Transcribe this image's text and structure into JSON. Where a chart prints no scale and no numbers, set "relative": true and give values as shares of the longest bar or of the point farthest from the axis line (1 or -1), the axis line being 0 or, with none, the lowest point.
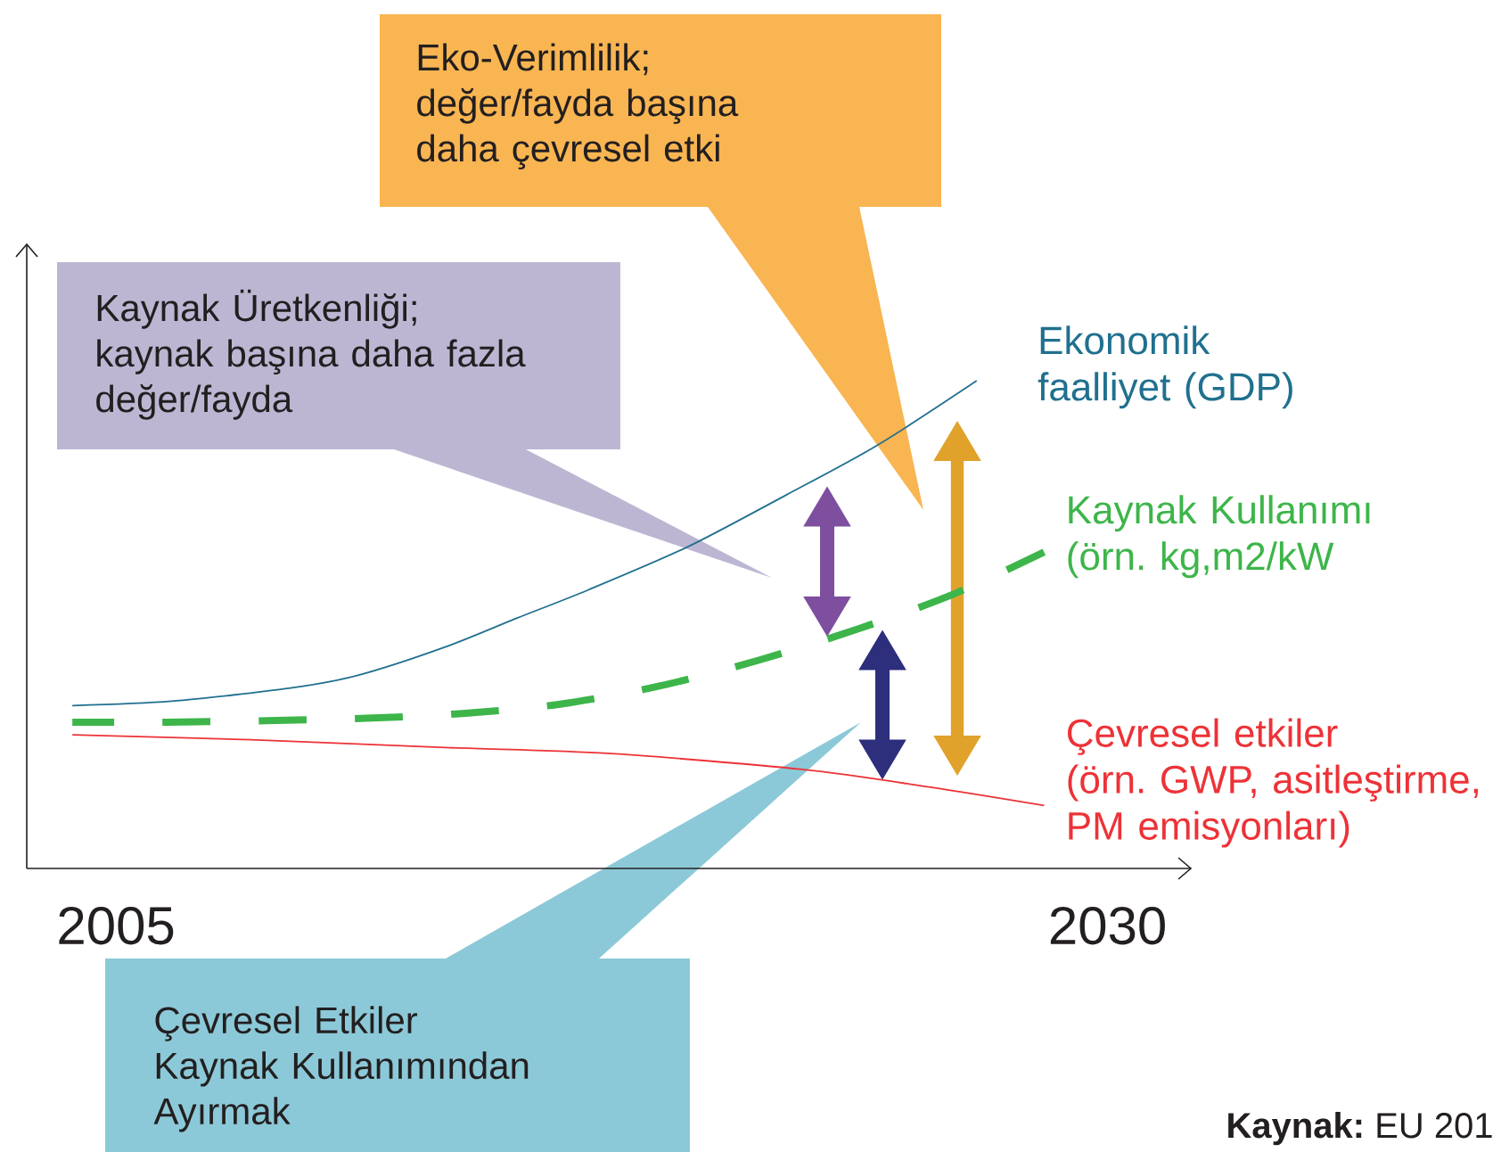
{
  "chart_data": {
    "type": "line",
    "relative": true,
    "xlim": [
      2002.75,
      2032.1
    ],
    "xticks": [
      2005,
      2030
    ],
    "series": [
      {
        "name": "Ekonomik faalliyet (GDP)",
        "color": "#20708f",
        "x": [
          2003.9,
          2006.4,
          2009.4,
          2011.1,
          2013.3,
          2015.1,
          2016.9,
          2019.4,
          2021.9,
          2024.2,
          2026.7
        ],
        "values": [
          0.334,
          0.343,
          0.37,
          0.396,
          0.454,
          0.513,
          0.571,
          0.659,
          0.766,
          0.868,
          1.0
        ]
      },
      {
        "name": "Kaynak Kullanımı (örn. kg,m2/kW",
        "color": "#3db54a",
        "line_style": "dashed",
        "x": [
          2003.9,
          2006.3,
          2008.8,
          2011.3,
          2013.8,
          2016.2,
          2018.7,
          2021.2,
          2023.7,
          2026.1,
          2028.4
        ],
        "values": [
          0.3,
          0.3,
          0.303,
          0.308,
          0.318,
          0.337,
          0.374,
          0.427,
          0.491,
          0.562,
          0.649
        ]
      },
      {
        "name": "Çevresel etkiler (örn. GWP, asitleştirme, PM emisyonları)",
        "color": "#ed3237",
        "x": [
          2003.9,
          2008.4,
          2013.3,
          2017.4,
          2022.3,
          2025.5,
          2028.4
        ],
        "values": [
          0.274,
          0.264,
          0.248,
          0.236,
          0.203,
          0.167,
          0.129
        ]
      }
    ],
    "annotations": [
      "Kaynak Üretkenliği; kaynak başına daha fazla değer/fayda",
      "Eko-Verimlilik; değer/fayda başına daha çevresel etki",
      "Çevresel Etkiler Kaynak Kullanımından Ayırmak",
      "**Kaynak:** EU 201"
    ]
  }
}
